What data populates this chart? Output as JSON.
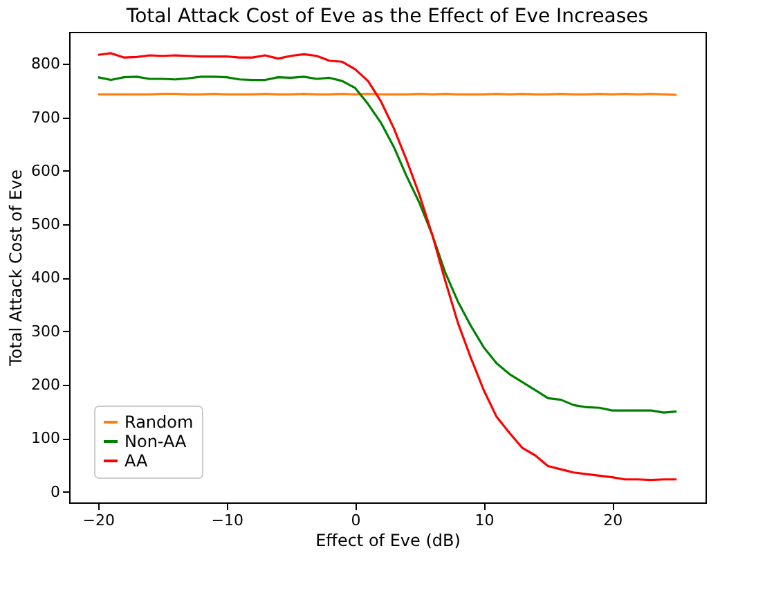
{
  "chart_data": {
    "type": "line",
    "title": "Total Attack Cost of Eve as the Effect of Eve Increases",
    "xlabel": "Effect of Eve (dB)",
    "ylabel": "Total Attack Cost of Eve",
    "x": [
      -20,
      -19,
      -18,
      -17,
      -16,
      -15,
      -14,
      -13,
      -12,
      -11,
      -10,
      -9,
      -8,
      -7,
      -6,
      -5,
      -4,
      -3,
      -2,
      -1,
      0,
      1,
      2,
      3,
      4,
      5,
      6,
      7,
      8,
      9,
      10,
      11,
      12,
      13,
      14,
      15,
      16,
      17,
      18,
      19,
      20,
      21,
      22,
      23,
      24,
      25
    ],
    "series": [
      {
        "name": "Random",
        "color": "#ff7f0e",
        "values": [
          743,
          743,
          743,
          743,
          743,
          744,
          744,
          743,
          743,
          744,
          743,
          743,
          743,
          744,
          743,
          743,
          744,
          743,
          743,
          744,
          743,
          744,
          743,
          743,
          743,
          744,
          743,
          744,
          743,
          743,
          743,
          744,
          743,
          744,
          743,
          743,
          744,
          743,
          743,
          744,
          743,
          744,
          743,
          744,
          743,
          742
        ]
      },
      {
        "name": "Non-AA",
        "color": "#008000",
        "values": [
          775,
          770,
          775,
          776,
          772,
          772,
          771,
          773,
          776,
          776,
          775,
          771,
          770,
          770,
          775,
          774,
          776,
          772,
          774,
          768,
          755,
          725,
          690,
          645,
          590,
          540,
          480,
          410,
          355,
          310,
          270,
          240,
          220,
          205,
          190,
          175,
          172,
          162,
          158,
          157,
          152,
          152,
          152,
          152,
          148,
          150
        ]
      },
      {
        "name": "AA",
        "color": "#ff0000",
        "values": [
          817,
          820,
          812,
          813,
          816,
          815,
          816,
          815,
          814,
          814,
          814,
          812,
          812,
          816,
          810,
          815,
          818,
          815,
          806,
          804,
          790,
          768,
          730,
          680,
          620,
          555,
          480,
          395,
          315,
          250,
          190,
          140,
          110,
          82,
          68,
          48,
          42,
          36,
          33,
          30,
          27,
          23,
          23,
          22,
          23,
          23
        ]
      }
    ],
    "xlim": [
      -22.25,
      27.25
    ],
    "xticks": [
      -20,
      -10,
      0,
      10,
      20
    ],
    "ylim": [
      -20,
      860
    ],
    "yticks": [
      0,
      100,
      200,
      300,
      400,
      500,
      600,
      700,
      800
    ],
    "grid": false,
    "legend": "bottom left",
    "marker": "none",
    "line_style": "solid"
  }
}
